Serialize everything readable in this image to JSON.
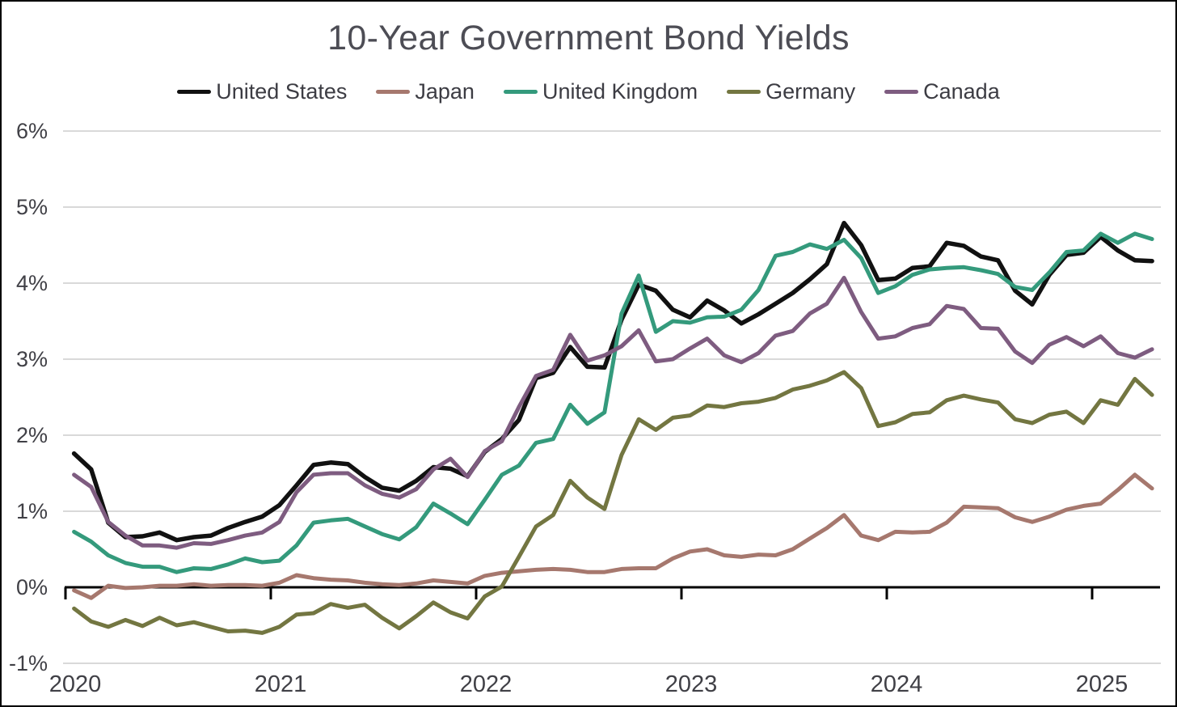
{
  "title": "10-Year Government Bond Yields",
  "colors": {
    "background": "#ffffff",
    "frame_border": "#000000",
    "gridline": "#d9d9d9",
    "zero_axis": "#000000",
    "title_text": "#4d4d55",
    "tick_text": "#404046",
    "legend_text": "#3c3c43"
  },
  "chart_data": {
    "type": "line",
    "title": "10-Year Government Bond Yields",
    "x_unit": "month",
    "x_start": "2020-01",
    "x_end": "2025-04",
    "x_tick_labels": [
      "2020",
      "2021",
      "2022",
      "2023",
      "2024",
      "2025"
    ],
    "y_tick_labels": [
      "6%",
      "5%",
      "4%",
      "3%",
      "2%",
      "1%",
      "0%",
      "-1%"
    ],
    "y_tick_values": [
      6,
      5,
      4,
      3,
      2,
      1,
      0,
      -1
    ],
    "ylim": [
      -1,
      6
    ],
    "ylabel": "",
    "xlabel": "",
    "grid": "horizontal",
    "legend_position": "top",
    "series": [
      {
        "name": "United States",
        "color": "#111111",
        "values": [
          1.76,
          1.55,
          0.85,
          0.66,
          0.67,
          0.72,
          0.62,
          0.66,
          0.68,
          0.78,
          0.86,
          0.93,
          1.08,
          1.34,
          1.61,
          1.64,
          1.62,
          1.45,
          1.31,
          1.27,
          1.4,
          1.58,
          1.56,
          1.46,
          1.78,
          1.95,
          2.2,
          2.75,
          2.82,
          3.16,
          2.9,
          2.89,
          3.52,
          3.98,
          3.9,
          3.65,
          3.55,
          3.77,
          3.64,
          3.47,
          3.59,
          3.73,
          3.87,
          4.05,
          4.25,
          4.79,
          4.5,
          4.04,
          4.06,
          4.2,
          4.22,
          4.53,
          4.49,
          4.35,
          4.3,
          3.9,
          3.72,
          4.11,
          4.37,
          4.4,
          4.61,
          4.43,
          4.3,
          4.29
        ]
      },
      {
        "name": "Japan",
        "color": "#a6786e",
        "values": [
          -0.04,
          -0.14,
          0.02,
          -0.01,
          0.0,
          0.02,
          0.02,
          0.04,
          0.02,
          0.03,
          0.03,
          0.02,
          0.06,
          0.16,
          0.12,
          0.1,
          0.09,
          0.06,
          0.04,
          0.03,
          0.05,
          0.09,
          0.07,
          0.05,
          0.15,
          0.19,
          0.21,
          0.23,
          0.24,
          0.23,
          0.2,
          0.2,
          0.24,
          0.25,
          0.25,
          0.38,
          0.47,
          0.5,
          0.42,
          0.4,
          0.43,
          0.42,
          0.5,
          0.64,
          0.78,
          0.95,
          0.68,
          0.62,
          0.73,
          0.72,
          0.73,
          0.85,
          1.06,
          1.05,
          1.04,
          0.92,
          0.86,
          0.93,
          1.02,
          1.07,
          1.1,
          1.28,
          1.48,
          1.3
        ]
      },
      {
        "name": "United Kingdom",
        "color": "#349a7c",
        "values": [
          0.73,
          0.6,
          0.42,
          0.32,
          0.27,
          0.27,
          0.2,
          0.25,
          0.24,
          0.3,
          0.38,
          0.33,
          0.35,
          0.55,
          0.85,
          0.88,
          0.9,
          0.8,
          0.7,
          0.63,
          0.79,
          1.1,
          0.97,
          0.83,
          1.15,
          1.48,
          1.6,
          1.9,
          1.95,
          2.4,
          2.15,
          2.3,
          3.6,
          4.1,
          3.36,
          3.5,
          3.48,
          3.55,
          3.56,
          3.65,
          3.91,
          4.36,
          4.41,
          4.51,
          4.45,
          4.57,
          4.33,
          3.87,
          3.96,
          4.11,
          4.18,
          4.2,
          4.21,
          4.17,
          4.12,
          3.95,
          3.91,
          4.14,
          4.41,
          4.43,
          4.65,
          4.53,
          4.65,
          4.58
        ]
      },
      {
        "name": "Germany",
        "color": "#737641",
        "values": [
          -0.28,
          -0.45,
          -0.52,
          -0.43,
          -0.51,
          -0.4,
          -0.5,
          -0.46,
          -0.52,
          -0.58,
          -0.57,
          -0.6,
          -0.52,
          -0.36,
          -0.34,
          -0.22,
          -0.27,
          -0.23,
          -0.4,
          -0.54,
          -0.38,
          -0.2,
          -0.33,
          -0.41,
          -0.12,
          0.01,
          0.4,
          0.8,
          0.95,
          1.4,
          1.18,
          1.03,
          1.74,
          2.21,
          2.07,
          2.23,
          2.26,
          2.39,
          2.37,
          2.42,
          2.44,
          2.49,
          2.6,
          2.65,
          2.72,
          2.83,
          2.62,
          2.12,
          2.17,
          2.28,
          2.3,
          2.46,
          2.52,
          2.47,
          2.43,
          2.21,
          2.16,
          2.27,
          2.31,
          2.16,
          2.46,
          2.4,
          2.74,
          2.53
        ]
      },
      {
        "name": "Canada",
        "color": "#7e5c80",
        "values": [
          1.48,
          1.32,
          0.86,
          0.68,
          0.55,
          0.55,
          0.52,
          0.58,
          0.57,
          0.62,
          0.68,
          0.72,
          0.86,
          1.25,
          1.48,
          1.5,
          1.5,
          1.34,
          1.23,
          1.18,
          1.29,
          1.55,
          1.69,
          1.45,
          1.79,
          1.92,
          2.37,
          2.78,
          2.86,
          3.32,
          2.98,
          3.05,
          3.17,
          3.38,
          2.97,
          3.0,
          3.14,
          3.27,
          3.05,
          2.96,
          3.08,
          3.31,
          3.37,
          3.6,
          3.73,
          4.07,
          3.62,
          3.27,
          3.3,
          3.41,
          3.46,
          3.7,
          3.66,
          3.41,
          3.4,
          3.1,
          2.95,
          3.19,
          3.29,
          3.17,
          3.3,
          3.08,
          3.02,
          3.13
        ]
      }
    ]
  }
}
